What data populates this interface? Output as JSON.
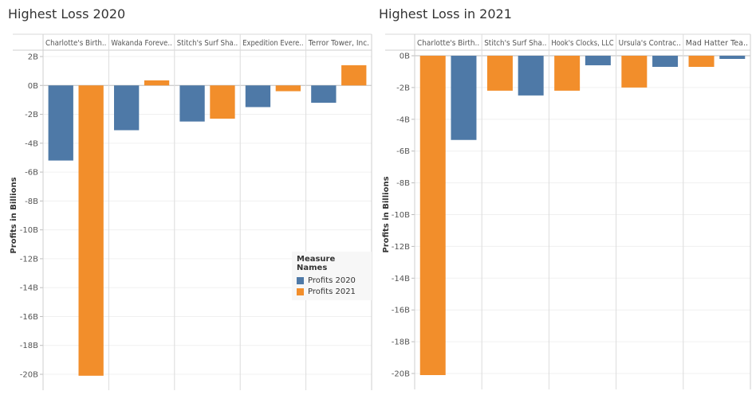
{
  "colors": {
    "profits_2020": "#4e79a7",
    "profits_2021": "#f28e2b"
  },
  "legend": {
    "title": "Measure Names",
    "items": [
      {
        "label": "Profits 2020",
        "color": "#4e79a7"
      },
      {
        "label": "Profits 2021",
        "color": "#f28e2b"
      }
    ]
  },
  "chart_data": [
    {
      "type": "bar",
      "title": "Highest Loss 2020",
      "ylabel": "Profits in Billions",
      "ylim": [
        -20,
        2
      ],
      "yticks": [
        {
          "value": 2,
          "label": "2B"
        },
        {
          "value": 0,
          "label": "0B"
        },
        {
          "value": -2,
          "label": "-2B"
        },
        {
          "value": -4,
          "label": "-4B"
        },
        {
          "value": -6,
          "label": "-6B"
        },
        {
          "value": -8,
          "label": "-8B"
        },
        {
          "value": -10,
          "label": "-10B"
        },
        {
          "value": -12,
          "label": "-12B"
        },
        {
          "value": -14,
          "label": "-14B"
        },
        {
          "value": -16,
          "label": "-16B"
        },
        {
          "value": -18,
          "label": "-18B"
        },
        {
          "value": -20,
          "label": "-20B"
        }
      ],
      "categories": [
        "Charlotte's Birth..",
        "Wakanda Foreve..",
        "Stitch's Surf Sha..",
        "Expedition Evere..",
        "Terror Tower, Inc."
      ],
      "series": [
        {
          "name": "Profits 2020",
          "values": [
            -5.2,
            -3.1,
            -2.5,
            -1.5,
            -1.2
          ]
        },
        {
          "name": "Profits 2021",
          "values": [
            -20.1,
            0.35,
            -2.3,
            -0.4,
            1.4
          ]
        }
      ],
      "grid": true,
      "legend_position": "bottom-right"
    },
    {
      "type": "bar",
      "title": "Highest Loss in 2021",
      "ylabel": "Profits in Billions",
      "ylim": [
        -20,
        0
      ],
      "yticks": [
        {
          "value": 0,
          "label": "0B"
        },
        {
          "value": -2,
          "label": "-2B"
        },
        {
          "value": -4,
          "label": "-4B"
        },
        {
          "value": -6,
          "label": "-6B"
        },
        {
          "value": -8,
          "label": "-8B"
        },
        {
          "value": -10,
          "label": "-10B"
        },
        {
          "value": -12,
          "label": "-12B"
        },
        {
          "value": -14,
          "label": "-14B"
        },
        {
          "value": -16,
          "label": "-16B"
        },
        {
          "value": -18,
          "label": "-18B"
        },
        {
          "value": -20,
          "label": "-20B"
        }
      ],
      "categories": [
        "Charlotte's Birth..",
        "Stitch's Surf Sha..",
        "Hook's Clocks, LLC",
        "Ursula's Contrac..",
        "Mad Hatter Tea.."
      ],
      "series": [
        {
          "name": "Profits 2021",
          "values": [
            -20.1,
            -2.2,
            -2.2,
            -2.0,
            -0.7
          ]
        },
        {
          "name": "Profits 2020",
          "values": [
            -5.3,
            -2.5,
            -0.6,
            -0.7,
            -0.2
          ]
        }
      ],
      "grid": true
    }
  ]
}
